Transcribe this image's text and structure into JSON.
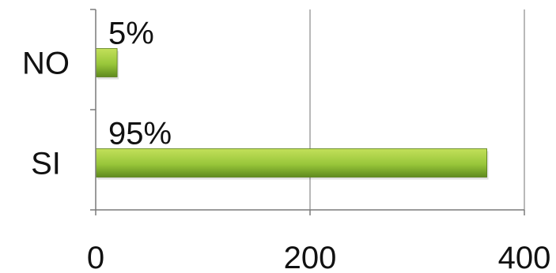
{
  "chart_data": {
    "type": "bar",
    "orientation": "horizontal",
    "categories": [
      "NO",
      "SI"
    ],
    "values": [
      20,
      365
    ],
    "data_labels": [
      "5%",
      "95%"
    ],
    "xlim": [
      0,
      400
    ],
    "xticks": [
      0,
      200,
      400
    ],
    "xtick_labels": [
      "0",
      "200",
      "400"
    ],
    "gridlines": "vertical",
    "legend": "none",
    "colors": {
      "bar_light": "#c3e05a",
      "bar_mid": "#98c63a",
      "bar_dark": "#5f8a1e",
      "gridline": "#8a8a8a",
      "axis": "#7a7a7a"
    }
  }
}
